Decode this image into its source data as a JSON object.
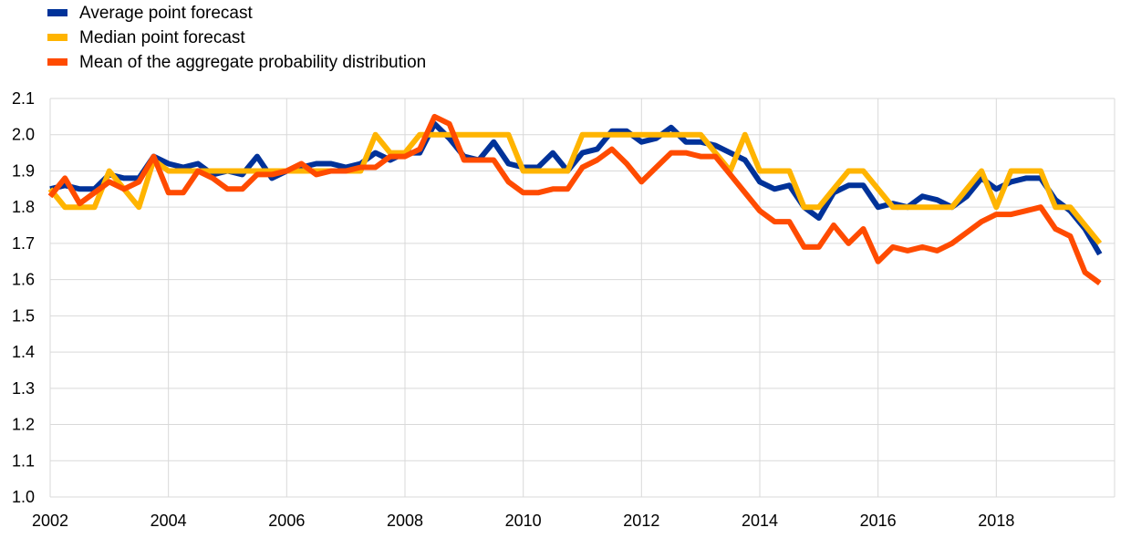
{
  "chart_data": {
    "type": "line",
    "title": "",
    "xlabel": "",
    "ylabel": "",
    "grid": true,
    "legend_position": "top-left",
    "xlim": [
      2002,
      2020
    ],
    "ylim": [
      1.0,
      2.1
    ],
    "x_ticks": [
      "2002",
      "2004",
      "2006",
      "2008",
      "2010",
      "2012",
      "2014",
      "2016",
      "2018"
    ],
    "x_tick_values": [
      2002,
      2004,
      2006,
      2008,
      2010,
      2012,
      2014,
      2016,
      2018
    ],
    "y_ticks": [
      "1.0",
      "1.1",
      "1.2",
      "1.3",
      "1.4",
      "1.5",
      "1.6",
      "1.7",
      "1.8",
      "1.9",
      "2.0",
      "2.1"
    ],
    "y_tick_values": [
      1.0,
      1.1,
      1.2,
      1.3,
      1.4,
      1.5,
      1.6,
      1.7,
      1.8,
      1.9,
      2.0,
      2.1
    ],
    "x_start": 2002.0,
    "x_step": 0.25,
    "series": [
      {
        "name": "Average point forecast",
        "color": "#003299",
        "values": [
          1.85,
          1.86,
          1.85,
          1.85,
          1.89,
          1.88,
          1.88,
          1.94,
          1.92,
          1.91,
          1.92,
          1.89,
          1.9,
          1.89,
          1.94,
          1.88,
          1.9,
          1.91,
          1.92,
          1.92,
          1.91,
          1.92,
          1.95,
          1.93,
          1.95,
          1.95,
          2.03,
          1.99,
          1.94,
          1.93,
          1.98,
          1.92,
          1.91,
          1.91,
          1.95,
          1.9,
          1.95,
          1.96,
          2.01,
          2.01,
          1.98,
          1.99,
          2.02,
          1.98,
          1.98,
          1.97,
          1.95,
          1.93,
          1.87,
          1.85,
          1.86,
          1.8,
          1.77,
          1.84,
          1.86,
          1.86,
          1.8,
          1.81,
          1.8,
          1.83,
          1.82,
          1.8,
          1.83,
          1.88,
          1.85,
          1.87,
          1.88,
          1.88,
          1.82,
          1.79,
          1.74,
          1.67
        ]
      },
      {
        "name": "Median point forecast",
        "color": "#FFB400",
        "values": [
          1.85,
          1.8,
          1.8,
          1.8,
          1.9,
          1.85,
          1.8,
          1.93,
          1.9,
          1.9,
          1.9,
          1.9,
          1.9,
          1.9,
          1.9,
          1.9,
          1.9,
          1.9,
          1.9,
          1.9,
          1.9,
          1.9,
          2.0,
          1.95,
          1.95,
          2.0,
          2.0,
          2.0,
          2.0,
          2.0,
          2.0,
          2.0,
          1.9,
          1.9,
          1.9,
          1.9,
          2.0,
          2.0,
          2.0,
          2.0,
          2.0,
          2.0,
          2.0,
          2.0,
          2.0,
          1.95,
          1.9,
          2.0,
          1.9,
          1.9,
          1.9,
          1.8,
          1.8,
          1.85,
          1.9,
          1.9,
          1.85,
          1.8,
          1.8,
          1.8,
          1.8,
          1.8,
          1.85,
          1.9,
          1.8,
          1.9,
          1.9,
          1.9,
          1.8,
          1.8,
          1.75,
          1.7
        ]
      },
      {
        "name": "Mean of the aggregate probability distribution",
        "color": "#FF4B00",
        "values": [
          1.83,
          1.88,
          1.81,
          1.84,
          1.87,
          1.85,
          1.87,
          1.94,
          1.84,
          1.84,
          1.9,
          1.88,
          1.85,
          1.85,
          1.89,
          1.89,
          1.9,
          1.92,
          1.89,
          1.9,
          1.9,
          1.91,
          1.91,
          1.94,
          1.94,
          1.96,
          2.05,
          2.03,
          1.93,
          1.93,
          1.93,
          1.87,
          1.84,
          1.84,
          1.85,
          1.85,
          1.91,
          1.93,
          1.96,
          1.92,
          1.87,
          1.91,
          1.95,
          1.95,
          1.94,
          1.94,
          1.89,
          1.84,
          1.79,
          1.76,
          1.76,
          1.69,
          1.69,
          1.75,
          1.7,
          1.74,
          1.65,
          1.69,
          1.68,
          1.69,
          1.68,
          1.7,
          1.73,
          1.76,
          1.78,
          1.78,
          1.79,
          1.8,
          1.74,
          1.72,
          1.62,
          1.59
        ]
      }
    ]
  }
}
